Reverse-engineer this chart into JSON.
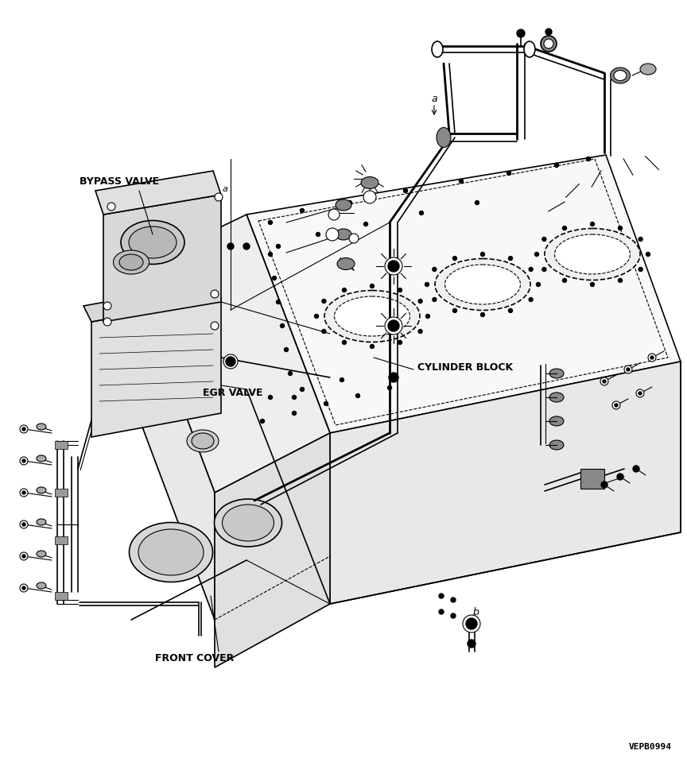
{
  "background_color": "#ffffff",
  "line_color": "#000000",
  "labels": {
    "bypass_valve": "BYPASS VALVE",
    "egr_valve": "EGR VALVE",
    "cylinder_block": "CYLINDER BLOCK",
    "front_cover": "FRONT COVER",
    "marker_a_top": "a",
    "marker_a_bypass": "a",
    "marker_b": "b",
    "part_number": "VEPB0994"
  },
  "figsize": [
    8.64,
    9.59
  ],
  "dpi": 100,
  "label_fontsize": 9,
  "marker_fontsize": 8,
  "part_fontsize": 7
}
